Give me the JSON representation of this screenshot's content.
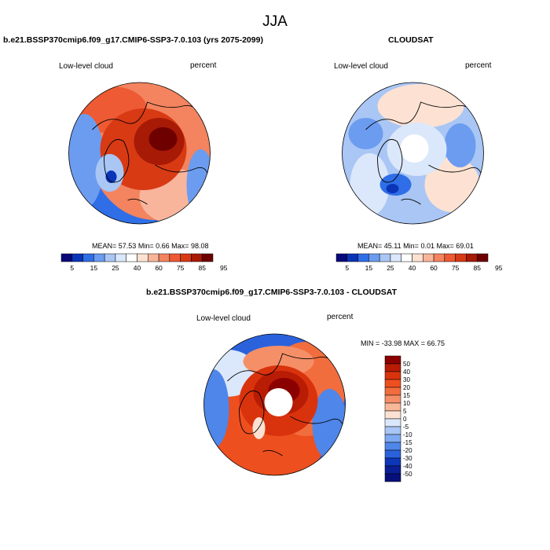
{
  "figure": {
    "season_title": "JJA"
  },
  "panels": [
    {
      "title": "b.e21.BSSP370cmip6.f09_g17.CMIP6-SSP3-7.0.103 (yrs 2075-2099)",
      "variable": "Low-level cloud",
      "units": "percent",
      "stats": {
        "mean_label": "MEAN=",
        "mean": "57.53",
        "min_label": "Min=",
        "min": "0.66",
        "max_label": "Max=",
        "max": "98.08"
      },
      "pattern": "high_arctic_red"
    },
    {
      "title": "CLOUDSAT",
      "variable": "Low-level cloud",
      "units": "percent",
      "stats": {
        "mean_label": "MEAN=",
        "mean": "45.11",
        "min_label": "Min=",
        "min": "0.01",
        "max_label": "Max=",
        "max": "69.01"
      },
      "pattern": "near_mean_with_gap"
    },
    {
      "title": "b.e21.BSSP370cmip6.f09_g17.CMIP6-SSP3-7.0.103 - CLOUDSAT",
      "variable": "Low-level cloud",
      "units": "percent",
      "stats": {
        "text": "MIN = -33.98 MAX =  66.75"
      },
      "pattern": "positive_difference_with_gap"
    }
  ],
  "colorbars": {
    "absolute": {
      "labels": [
        "5",
        "15",
        "25",
        "40",
        "60",
        "75",
        "85",
        "95"
      ],
      "colors": [
        "#08087a",
        "#0a35b8",
        "#2f6ee6",
        "#6b9cf0",
        "#a9c6f5",
        "#dbe7fa",
        "#ffffff",
        "#fde2d3",
        "#f8b59b",
        "#f3845f",
        "#ee5a33",
        "#d83a14",
        "#a71a06",
        "#6e0000"
      ]
    },
    "difference": {
      "labels": [
        "50",
        "40",
        "30",
        "20",
        "15",
        "10",
        "5",
        "0",
        "-5",
        "-10",
        "-15",
        "-20",
        "-30",
        "-40",
        "-50"
      ],
      "colors": [
        "#8b0000",
        "#b81c05",
        "#d9330d",
        "#ee4f1f",
        "#f26d3e",
        "#f58f68",
        "#f8b797",
        "#fde2d3",
        "#dbe7fa",
        "#a9c6f5",
        "#7eaaf1",
        "#4f86ea",
        "#2b62dc",
        "#0d36b8",
        "#0a1f96",
        "#06107a"
      ]
    }
  }
}
